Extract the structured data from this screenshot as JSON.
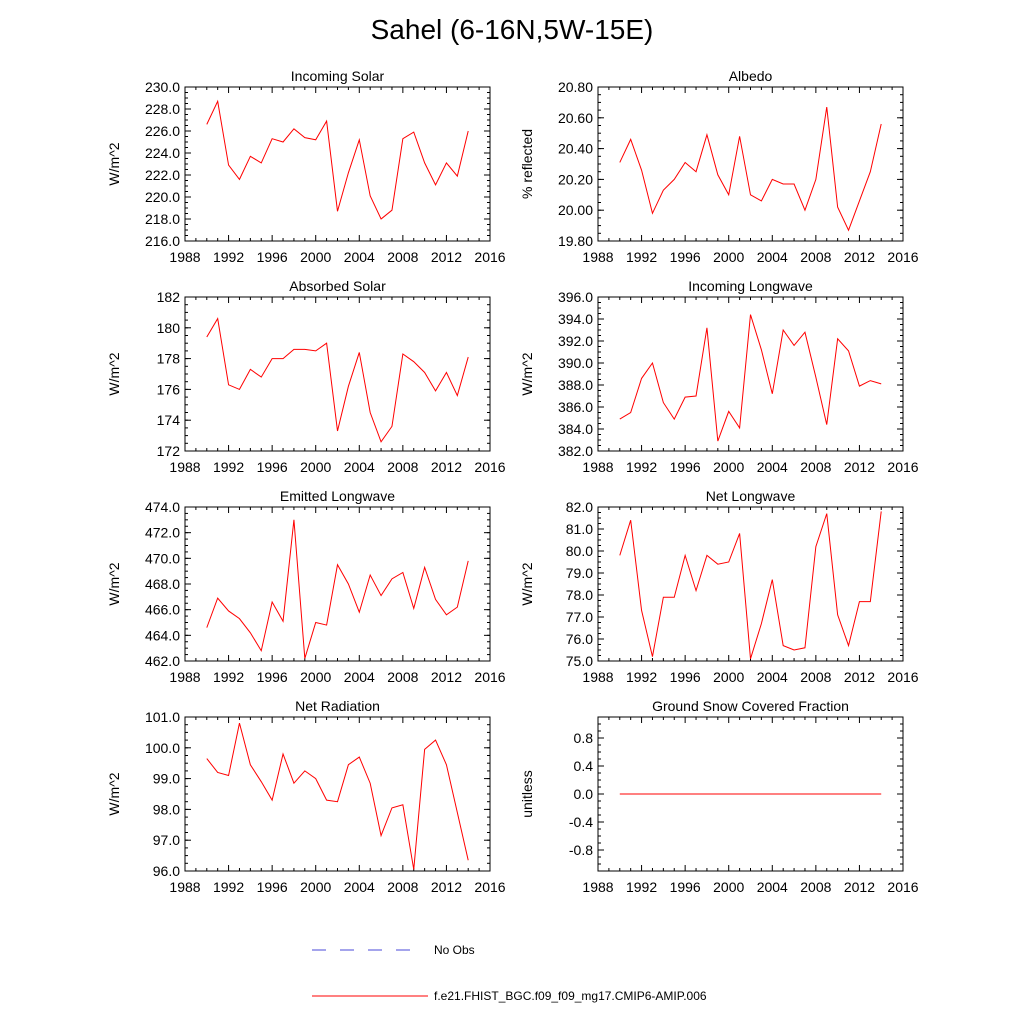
{
  "title": "Sahel (6-16N,5W-15E)",
  "colors": {
    "model": "#ff0000",
    "obs": "#4a4ad8",
    "axis": "#000000"
  },
  "legend": {
    "obs_label": "No Obs",
    "model_label": "f.e21.FHIST_BGC.f09_f09_mg17.CMIP6-AMIP.006"
  },
  "chart_data": [
    {
      "type": "line",
      "title": "Incoming Solar",
      "ylabel": "W/m^2",
      "xlim": [
        1988,
        2016
      ],
      "xticks": [
        1988,
        1992,
        1996,
        2000,
        2004,
        2008,
        2012,
        2016
      ],
      "ylim": [
        216,
        230
      ],
      "ymajor": [
        216,
        218,
        220,
        222,
        224,
        226,
        228,
        230
      ],
      "ydec": 1,
      "x": [
        1990,
        1991,
        1992,
        1993,
        1994,
        1995,
        1996,
        1997,
        1998,
        1999,
        2000,
        2001,
        2002,
        2003,
        2004,
        2005,
        2006,
        2007,
        2008,
        2009,
        2010,
        2011,
        2012,
        2013,
        2014
      ],
      "series": [
        {
          "name": "f.e21.FHIST_BGC.f09_f09_mg17.CMIP6-AMIP.006",
          "values": [
            226.6,
            228.7,
            222.9,
            221.6,
            223.7,
            223.1,
            225.3,
            225.0,
            226.2,
            225.4,
            225.2,
            226.9,
            218.7,
            222.2,
            225.2,
            220.1,
            218.0,
            218.8,
            225.3,
            225.9,
            223.1,
            221.1,
            223.1,
            221.9,
            226.0
          ]
        }
      ]
    },
    {
      "type": "line",
      "title": "Albedo",
      "ylabel": "% reflected",
      "xlim": [
        1988,
        2016
      ],
      "xticks": [
        1988,
        1992,
        1996,
        2000,
        2004,
        2008,
        2012,
        2016
      ],
      "ylim": [
        19.8,
        20.8
      ],
      "ymajor": [
        19.8,
        20.0,
        20.2,
        20.4,
        20.6,
        20.8
      ],
      "ydec": 2,
      "x": [
        1990,
        1991,
        1992,
        1993,
        1994,
        1995,
        1996,
        1997,
        1998,
        1999,
        2000,
        2001,
        2002,
        2003,
        2004,
        2005,
        2006,
        2007,
        2008,
        2009,
        2010,
        2011,
        2012,
        2013,
        2014
      ],
      "series": [
        {
          "name": "f.e21.FHIST_BGC.f09_f09_mg17.CMIP6-AMIP.006",
          "values": [
            20.31,
            20.46,
            20.26,
            19.98,
            20.13,
            20.2,
            20.31,
            20.25,
            20.49,
            20.23,
            20.1,
            20.48,
            20.1,
            20.06,
            20.2,
            20.17,
            20.17,
            20.0,
            20.2,
            20.67,
            20.02,
            19.87,
            20.06,
            20.25,
            20.56
          ]
        }
      ]
    },
    {
      "type": "line",
      "title": "Absorbed Solar",
      "ylabel": "W/m^2",
      "xlim": [
        1988,
        2016
      ],
      "xticks": [
        1988,
        1992,
        1996,
        2000,
        2004,
        2008,
        2012,
        2016
      ],
      "ylim": [
        172,
        182
      ],
      "ymajor": [
        172,
        174,
        176,
        178,
        180,
        182
      ],
      "ydec": 0,
      "x": [
        1990,
        1991,
        1992,
        1993,
        1994,
        1995,
        1996,
        1997,
        1998,
        1999,
        2000,
        2001,
        2002,
        2003,
        2004,
        2005,
        2006,
        2007,
        2008,
        2009,
        2010,
        2011,
        2012,
        2013,
        2014
      ],
      "series": [
        {
          "name": "f.e21.FHIST_BGC.f09_f09_mg17.CMIP6-AMIP.006",
          "values": [
            179.4,
            180.6,
            176.3,
            176.0,
            177.3,
            176.8,
            178.0,
            178.0,
            178.6,
            178.6,
            178.5,
            179.0,
            173.3,
            176.2,
            178.4,
            174.5,
            172.6,
            173.6,
            178.3,
            177.8,
            177.1,
            175.9,
            177.1,
            175.6,
            178.1
          ]
        }
      ]
    },
    {
      "type": "line",
      "title": "Incoming Longwave",
      "ylabel": "W/m^2",
      "xlim": [
        1988,
        2016
      ],
      "xticks": [
        1988,
        1992,
        1996,
        2000,
        2004,
        2008,
        2012,
        2016
      ],
      "ylim": [
        382,
        396
      ],
      "ymajor": [
        382,
        384,
        386,
        388,
        390,
        392,
        394,
        396
      ],
      "ydec": 1,
      "x": [
        1990,
        1991,
        1992,
        1993,
        1994,
        1995,
        1996,
        1997,
        1998,
        1999,
        2000,
        2001,
        2002,
        2003,
        2004,
        2005,
        2006,
        2007,
        2008,
        2009,
        2010,
        2011,
        2012,
        2013,
        2014
      ],
      "series": [
        {
          "name": "f.e21.FHIST_BGC.f09_f09_mg17.CMIP6-AMIP.006",
          "values": [
            384.9,
            385.5,
            388.6,
            390.0,
            386.4,
            384.9,
            386.9,
            387.0,
            393.2,
            382.9,
            385.6,
            384.1,
            394.4,
            391.2,
            387.2,
            393.0,
            391.6,
            392.8,
            388.7,
            384.4,
            392.2,
            391.1,
            387.9,
            388.4,
            388.1
          ]
        }
      ]
    },
    {
      "type": "line",
      "title": "Emitted Longwave",
      "ylabel": "W/m^2",
      "xlim": [
        1988,
        2016
      ],
      "xticks": [
        1988,
        1992,
        1996,
        2000,
        2004,
        2008,
        2012,
        2016
      ],
      "ylim": [
        462,
        474
      ],
      "ymajor": [
        462,
        464,
        466,
        468,
        470,
        472,
        474
      ],
      "ydec": 1,
      "x": [
        1990,
        1991,
        1992,
        1993,
        1994,
        1995,
        1996,
        1997,
        1998,
        1999,
        2000,
        2001,
        2002,
        2003,
        2004,
        2005,
        2006,
        2007,
        2008,
        2009,
        2010,
        2011,
        2012,
        2013,
        2014
      ],
      "series": [
        {
          "name": "f.e21.FHIST_BGC.f09_f09_mg17.CMIP6-AMIP.006",
          "values": [
            464.6,
            466.9,
            465.9,
            465.3,
            464.2,
            462.8,
            466.6,
            465.1,
            473.0,
            462.2,
            465.0,
            464.8,
            469.5,
            468.0,
            465.8,
            468.7,
            467.1,
            468.4,
            468.9,
            466.1,
            469.3,
            466.8,
            465.6,
            466.2,
            469.8
          ]
        }
      ]
    },
    {
      "type": "line",
      "title": "Net Longwave",
      "ylabel": "W/m^2",
      "xlim": [
        1988,
        2016
      ],
      "xticks": [
        1988,
        1992,
        1996,
        2000,
        2004,
        2008,
        2012,
        2016
      ],
      "ylim": [
        75,
        82
      ],
      "ymajor": [
        75,
        76,
        77,
        78,
        79,
        80,
        81,
        82
      ],
      "ydec": 1,
      "x": [
        1990,
        1991,
        1992,
        1993,
        1994,
        1995,
        1996,
        1997,
        1998,
        1999,
        2000,
        2001,
        2002,
        2003,
        2004,
        2005,
        2006,
        2007,
        2008,
        2009,
        2010,
        2011,
        2012,
        2013,
        2014
      ],
      "series": [
        {
          "name": "f.e21.FHIST_BGC.f09_f09_mg17.CMIP6-AMIP.006",
          "values": [
            79.8,
            81.4,
            77.3,
            75.2,
            77.9,
            77.9,
            79.8,
            78.2,
            79.8,
            79.4,
            79.5,
            80.8,
            75.1,
            76.7,
            78.7,
            75.7,
            75.5,
            75.6,
            80.2,
            81.7,
            77.1,
            75.7,
            77.7,
            77.7,
            81.8
          ]
        }
      ]
    },
    {
      "type": "line",
      "title": "Net Radiation",
      "ylabel": "W/m^2",
      "xlim": [
        1988,
        2016
      ],
      "xticks": [
        1988,
        1992,
        1996,
        2000,
        2004,
        2008,
        2012,
        2016
      ],
      "ylim": [
        96,
        101
      ],
      "ymajor": [
        96,
        97,
        98,
        99,
        100,
        101
      ],
      "ydec": 1,
      "x": [
        1990,
        1991,
        1992,
        1993,
        1994,
        1995,
        1996,
        1997,
        1998,
        1999,
        2000,
        2001,
        2002,
        2003,
        2004,
        2005,
        2006,
        2007,
        2008,
        2009,
        2010,
        2011,
        2012,
        2013,
        2014
      ],
      "series": [
        {
          "name": "f.e21.FHIST_BGC.f09_f09_mg17.CMIP6-AMIP.006",
          "values": [
            99.65,
            99.2,
            99.1,
            100.8,
            99.45,
            98.9,
            98.3,
            99.8,
            98.85,
            99.25,
            99.0,
            98.3,
            98.25,
            99.45,
            99.7,
            98.85,
            97.15,
            98.05,
            98.15,
            96.05,
            99.95,
            100.25,
            99.45,
            97.9,
            96.35
          ]
        }
      ]
    },
    {
      "type": "line",
      "title": "Ground Snow Covered Fraction",
      "ylabel": "unitless",
      "xlim": [
        1988,
        2016
      ],
      "xticks": [
        1988,
        1992,
        1996,
        2000,
        2004,
        2008,
        2012,
        2016
      ],
      "ylim": [
        -1.1,
        1.1
      ],
      "ymajor": [
        -0.8,
        -0.4,
        0.0,
        0.4,
        0.8
      ],
      "ydec": 1,
      "x": [
        1990,
        1991,
        1992,
        1993,
        1994,
        1995,
        1996,
        1997,
        1998,
        1999,
        2000,
        2001,
        2002,
        2003,
        2004,
        2005,
        2006,
        2007,
        2008,
        2009,
        2010,
        2011,
        2012,
        2013,
        2014
      ],
      "series": [
        {
          "name": "f.e21.FHIST_BGC.f09_f09_mg17.CMIP6-AMIP.006",
          "values": [
            0,
            0,
            0,
            0,
            0,
            0,
            0,
            0,
            0,
            0,
            0,
            0,
            0,
            0,
            0,
            0,
            0,
            0,
            0,
            0,
            0,
            0,
            0,
            0,
            0
          ]
        }
      ]
    }
  ]
}
